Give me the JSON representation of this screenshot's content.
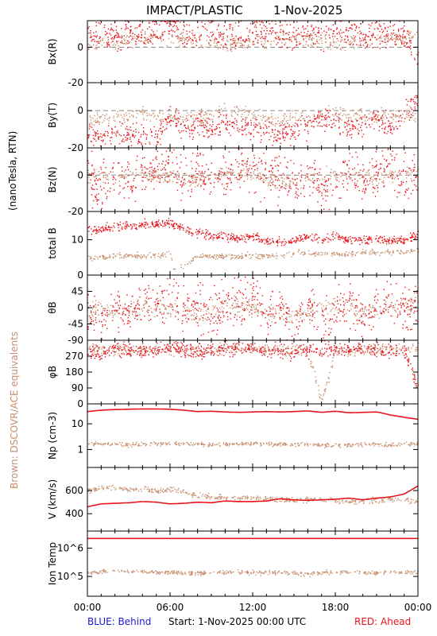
{
  "header": {
    "title": "IMPACT/PLASTIC",
    "date": "1-Nov-2025"
  },
  "side_labels": {
    "units": "(nanoTesla, RTN)",
    "brown_note": "Brown: DSCOVR/ACE equivalents"
  },
  "footer": {
    "blue_label": "BLUE: Behind",
    "start_label": "Start:  1-Nov-2025 00:00 UTC",
    "red_label": "RED: Ahead"
  },
  "colors": {
    "ahead": "#e8141c",
    "ace": "#c8906e",
    "behind": "#1a1acc",
    "dash": "#888888"
  },
  "chart_data": [
    {
      "id": "bx",
      "type": "scatter",
      "ylabel": "Bx(R)",
      "ylim": [
        -20,
        15
      ],
      "yticks": [
        {
          "v": 0,
          "t": "0"
        },
        {
          "v": -20,
          "t": "-20"
        }
      ],
      "zero_line": true,
      "series": [
        {
          "role": "ace",
          "x": [
            0,
            2,
            4,
            6,
            8,
            10,
            12,
            14,
            16,
            18,
            20,
            22,
            24
          ],
          "y": [
            4,
            3,
            5,
            6,
            3,
            2,
            4,
            6,
            5,
            3,
            4,
            5,
            6
          ],
          "noise": 2
        },
        {
          "role": "ahead",
          "x": [
            0,
            1,
            2,
            3,
            4,
            5,
            6,
            7,
            8,
            9,
            10,
            11,
            12,
            13,
            14,
            15,
            16,
            17,
            18,
            19,
            20,
            21,
            22,
            23,
            24
          ],
          "y": [
            6,
            8,
            5,
            9,
            7,
            10,
            12,
            8,
            6,
            9,
            5,
            6,
            8,
            10,
            7,
            5,
            9,
            6,
            8,
            9,
            7,
            8,
            9,
            6,
            -6
          ],
          "noise": 4
        }
      ]
    },
    {
      "id": "by",
      "type": "scatter",
      "ylabel": "By(T)",
      "ylim": [
        -20,
        15
      ],
      "yticks": [
        {
          "v": 0,
          "t": "0"
        },
        {
          "v": -20,
          "t": "-20"
        }
      ],
      "zero_line": true,
      "series": [
        {
          "role": "ace",
          "x": [
            0,
            2,
            4,
            6,
            8,
            10,
            12,
            14,
            16,
            18,
            20,
            22,
            24
          ],
          "y": [
            -5,
            -4,
            -2,
            -3,
            -4,
            0,
            -3,
            -5,
            -4,
            -1,
            -2,
            -3,
            -2
          ],
          "noise": 2
        },
        {
          "role": "ahead",
          "x": [
            0,
            1,
            2,
            3,
            4,
            5,
            6,
            7,
            8,
            9,
            10,
            11,
            12,
            13,
            14,
            15,
            16,
            17,
            18,
            19,
            20,
            21,
            22,
            23,
            24
          ],
          "y": [
            -12,
            -14,
            -13,
            -12,
            -13,
            -14,
            -2,
            -10,
            -8,
            -9,
            -6,
            -8,
            -10,
            -11,
            -12,
            -10,
            -8,
            -4,
            -6,
            -9,
            -7,
            -5,
            -8,
            -2,
            8
          ],
          "noise": 3
        }
      ]
    },
    {
      "id": "bz",
      "type": "scatter",
      "ylabel": "Bz(N)",
      "ylim": [
        -20,
        15
      ],
      "yticks": [
        {
          "v": 0,
          "t": "0"
        },
        {
          "v": -20,
          "t": "-20"
        }
      ],
      "zero_line": true,
      "series": [
        {
          "role": "ace",
          "x": [
            0,
            2,
            4,
            6,
            8,
            10,
            12,
            14,
            16,
            18,
            20,
            22,
            24
          ],
          "y": [
            0,
            -2,
            1,
            -1,
            -3,
            2,
            0,
            -4,
            -2,
            1,
            -1,
            0,
            2
          ],
          "noise": 2
        },
        {
          "role": "ahead",
          "x": [
            0,
            1,
            2,
            3,
            4,
            5,
            6,
            7,
            8,
            9,
            10,
            11,
            12,
            13,
            14,
            15,
            16,
            17,
            18,
            19,
            20,
            21,
            22,
            23,
            24
          ],
          "y": [
            0,
            -8,
            2,
            -5,
            1,
            3,
            5,
            -2,
            3,
            -4,
            2,
            4,
            6,
            -3,
            1,
            -6,
            4,
            -8,
            -2,
            3,
            -5,
            2,
            4,
            -2,
            1
          ],
          "noise": 6
        }
      ]
    },
    {
      "id": "btot",
      "type": "scatter",
      "ylabel": "total B",
      "ylim": [
        0,
        18
      ],
      "yticks": [
        {
          "v": 10,
          "t": "10"
        },
        {
          "v": 0,
          "t": "0"
        }
      ],
      "zero_line": false,
      "series": [
        {
          "role": "ace",
          "x": [
            0,
            2,
            4,
            6,
            6.3,
            8,
            10,
            12,
            14,
            15,
            18,
            20,
            22,
            24
          ],
          "y": [
            5,
            5.5,
            5.5,
            6,
            1,
            5.5,
            5.5,
            5.5,
            5.5,
            6.5,
            6,
            6.5,
            6.5,
            7
          ],
          "noise": 0.4
        },
        {
          "role": "ahead",
          "x": [
            0,
            1,
            2,
            3,
            4,
            5,
            6,
            7,
            8,
            9,
            10,
            11,
            12,
            13,
            14,
            15,
            16,
            17,
            18,
            19,
            20,
            21,
            22,
            23,
            24
          ],
          "y": [
            13,
            13,
            14,
            14,
            14.5,
            14.5,
            15,
            13,
            12,
            11.5,
            11,
            10.5,
            11,
            10,
            9.5,
            10,
            11,
            10,
            11,
            10,
            10,
            10.5,
            10,
            10,
            12
          ],
          "noise": 0.6
        }
      ]
    },
    {
      "id": "theta",
      "type": "scatter",
      "ylabel": "θB",
      "ylim": [
        -90,
        90
      ],
      "yticks": [
        {
          "v": 45,
          "t": "45"
        },
        {
          "v": 0,
          "t": "0"
        },
        {
          "v": -45,
          "t": "-45"
        },
        {
          "v": -90,
          "t": "-90"
        }
      ],
      "zero_line": false,
      "series": [
        {
          "role": "ace",
          "x": [
            0,
            2,
            4,
            6,
            8,
            10,
            12,
            14,
            16,
            18,
            20,
            22,
            24
          ],
          "y": [
            0,
            -10,
            5,
            -5,
            -20,
            10,
            0,
            -25,
            -15,
            10,
            -5,
            0,
            10
          ],
          "noise": 12
        },
        {
          "role": "ahead",
          "x": [
            0,
            1,
            2,
            3,
            4,
            5,
            6,
            7,
            8,
            9,
            10,
            11,
            12,
            13,
            14,
            15,
            16,
            17,
            18,
            19,
            20,
            21,
            22,
            23,
            24
          ],
          "y": [
            5,
            -40,
            10,
            -20,
            8,
            15,
            30,
            -10,
            20,
            -25,
            10,
            20,
            35,
            -20,
            5,
            -45,
            25,
            -50,
            -10,
            15,
            -30,
            10,
            25,
            -10,
            5
          ],
          "noise": 30
        }
      ]
    },
    {
      "id": "phi",
      "type": "scatter",
      "ylabel": "φB",
      "ylim": [
        0,
        360
      ],
      "yticks": [
        {
          "v": 270,
          "t": "270"
        },
        {
          "v": 180,
          "t": "180"
        },
        {
          "v": 90,
          "t": "90"
        },
        {
          "v": 0,
          "t": "0"
        }
      ],
      "zero_line": false,
      "series": [
        {
          "role": "ace",
          "x": [
            0,
            2,
            4,
            6,
            8,
            10,
            12,
            14,
            16,
            17,
            18,
            20,
            22,
            24
          ],
          "y": [
            315,
            300,
            305,
            310,
            300,
            320,
            315,
            310,
            305,
            20,
            300,
            310,
            315,
            320
          ],
          "noise": 15
        },
        {
          "role": "ahead",
          "x": [
            0,
            1,
            2,
            3,
            4,
            5,
            6,
            7,
            8,
            9,
            10,
            11,
            12,
            13,
            14,
            15,
            16,
            17,
            18,
            19,
            20,
            21,
            22,
            23,
            24
          ],
          "y": [
            300,
            290,
            310,
            305,
            300,
            310,
            320,
            310,
            300,
            305,
            315,
            320,
            310,
            300,
            305,
            295,
            310,
            300,
            315,
            320,
            310,
            305,
            300,
            310,
            80
          ],
          "noise": 20
        }
      ]
    },
    {
      "id": "np",
      "type": "scatter",
      "ylabel": "Np (cm-3)",
      "scale": "log",
      "ylim": [
        0.2,
        60
      ],
      "yticks": [
        {
          "v": 10,
          "t": "10"
        },
        {
          "v": 1,
          "t": "1"
        }
      ],
      "zero_line": false,
      "series": [
        {
          "role": "ace",
          "x": [
            0,
            2,
            4,
            6,
            8,
            10,
            12,
            14,
            16,
            18,
            20,
            22,
            24
          ],
          "y": [
            1.8,
            1.6,
            1.7,
            1.8,
            1.6,
            1.7,
            1.8,
            1.7,
            1.6,
            1.5,
            1.7,
            1.6,
            1.8
          ],
          "noise": 0.3
        },
        {
          "role": "ahead",
          "x": [
            0,
            1,
            2,
            3,
            4,
            5,
            6,
            7,
            8,
            9,
            10,
            11,
            12,
            13,
            14,
            15,
            16,
            17,
            18,
            19,
            20,
            21,
            22,
            23,
            24
          ],
          "y": [
            30,
            34,
            36,
            37,
            38,
            38,
            37,
            34,
            30,
            31,
            29,
            28,
            29,
            30,
            29,
            30,
            32,
            28,
            31,
            27,
            28,
            29,
            22,
            18,
            15
          ],
          "noise": 0
        }
      ]
    },
    {
      "id": "v",
      "type": "scatter",
      "ylabel": "V (km/s)",
      "ylim": [
        250,
        800
      ],
      "yticks": [
        {
          "v": 600,
          "t": "600"
        },
        {
          "v": 400,
          "t": "400"
        }
      ],
      "zero_line": false,
      "series": [
        {
          "role": "ace",
          "x": [
            0,
            1,
            2,
            3,
            4,
            5,
            6,
            7,
            8,
            9,
            10,
            11,
            12,
            13,
            14,
            15,
            16,
            17,
            18,
            19,
            20,
            21,
            22,
            23,
            24
          ],
          "y": [
            600,
            630,
            625,
            610,
            620,
            600,
            615,
            590,
            560,
            550,
            545,
            540,
            535,
            530,
            525,
            520,
            530,
            525,
            520,
            510,
            515,
            520,
            530,
            525,
            505
          ],
          "noise": 12
        },
        {
          "role": "ahead",
          "x": [
            0,
            1,
            2,
            3,
            4,
            5,
            6,
            7,
            8,
            9,
            10,
            11,
            12,
            13,
            14,
            15,
            16,
            17,
            18,
            19,
            20,
            21,
            22,
            23,
            24
          ],
          "y": [
            460,
            485,
            490,
            495,
            505,
            500,
            485,
            490,
            500,
            495,
            510,
            505,
            505,
            510,
            530,
            520,
            515,
            520,
            525,
            535,
            520,
            535,
            545,
            570,
            640
          ],
          "noise": 0
        }
      ]
    },
    {
      "id": "temp",
      "type": "scatter",
      "ylabel": "Ion Temp",
      "scale": "log",
      "ylim": [
        20000,
        4000000
      ],
      "yticks": [
        {
          "v": 1000000,
          "t": "10^6"
        },
        {
          "v": 100000,
          "t": "10^5"
        }
      ],
      "zero_line": false,
      "series": [
        {
          "role": "ace",
          "x": [
            0,
            2,
            4,
            6,
            8,
            10,
            12,
            14,
            16,
            18,
            20,
            22,
            24
          ],
          "y": [
            140000,
            160000,
            150000,
            145000,
            135000,
            150000,
            145000,
            140000,
            130000,
            155000,
            140000,
            145000,
            150000
          ],
          "noise": 25000
        },
        {
          "role": "ahead",
          "x": [
            0,
            24
          ],
          "y": [
            2200000,
            2200000
          ],
          "noise": 0
        }
      ]
    }
  ],
  "x_axis": {
    "range": [
      0,
      24
    ],
    "tick_labels": [
      {
        "v": 0,
        "t": "00:00"
      },
      {
        "v": 6,
        "t": "06:00"
      },
      {
        "v": 12,
        "t": "12:00"
      },
      {
        "v": 18,
        "t": "18:00"
      },
      {
        "v": 24,
        "t": "00:00"
      }
    ]
  }
}
